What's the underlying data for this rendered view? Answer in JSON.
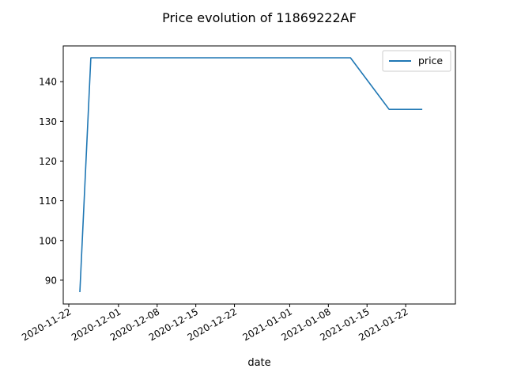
{
  "chart_data": {
    "type": "line",
    "title": "Price evolution of 11869222AF",
    "xlabel": "date",
    "ylabel": "",
    "x": [
      "2020-11-24",
      "2020-11-26",
      "2021-01-12",
      "2021-01-19",
      "2021-01-25"
    ],
    "series": [
      {
        "name": "price",
        "values": [
          87,
          146,
          146,
          133,
          133
        ],
        "color": "#1f77b4"
      }
    ],
    "x_ticks": [
      "2020-11-22",
      "2020-12-01",
      "2020-12-08",
      "2020-12-15",
      "2020-12-22",
      "2021-01-01",
      "2021-01-08",
      "2021-01-15",
      "2021-01-22"
    ],
    "y_ticks": [
      90,
      100,
      110,
      120,
      130,
      140
    ],
    "xlim": [
      "2020-11-21",
      "2021-01-31"
    ],
    "ylim": [
      84,
      149
    ],
    "grid": false,
    "legend": "top-right"
  }
}
